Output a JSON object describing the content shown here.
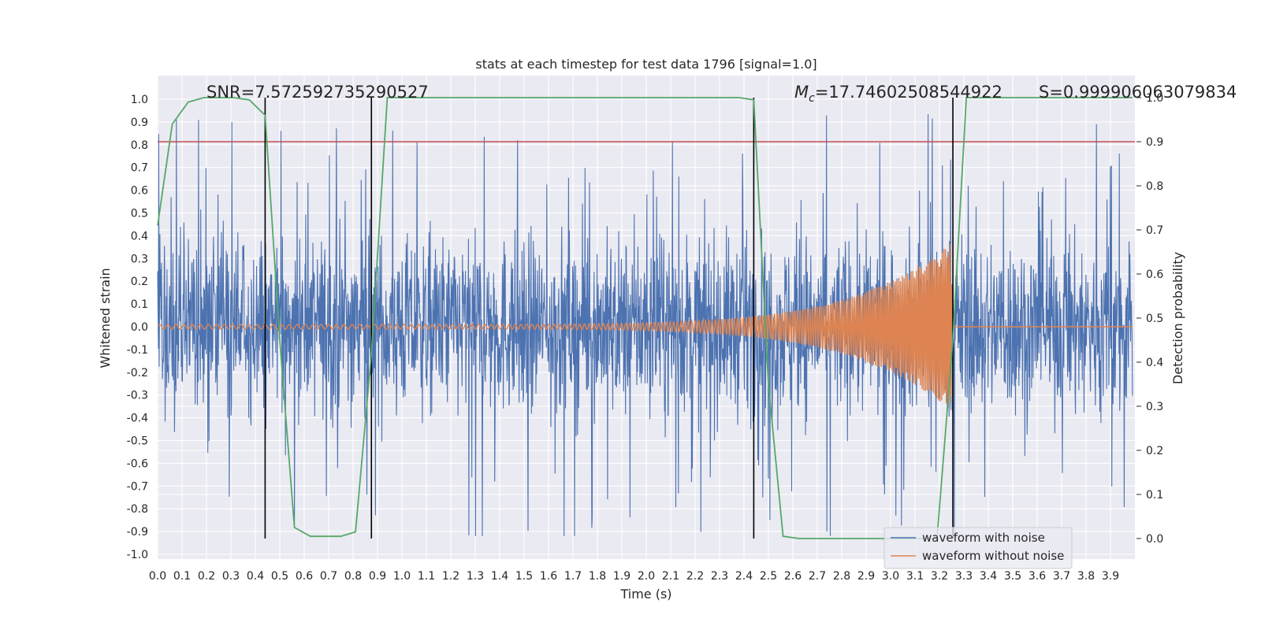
{
  "chart_data": {
    "type": "line",
    "title": "stats at each timestep for test data 1796 [signal=1.0]",
    "xlabel": "Time (s)",
    "ylabel": "Whitened strain",
    "y2label": "Detection probability",
    "xlim": [
      0.0,
      3.99
    ],
    "ylim": [
      -1.05,
      1.08
    ],
    "y2lim": [
      -0.05,
      1.0
    ],
    "xticks": [
      "0.0",
      "0.1",
      "0.2",
      "0.3",
      "0.4",
      "0.5",
      "0.6",
      "0.7",
      "0.8",
      "0.9",
      "1.0",
      "1.1",
      "1.2",
      "1.3",
      "1.4",
      "1.5",
      "1.6",
      "1.7",
      "1.8",
      "1.9",
      "2.0",
      "2.1",
      "2.2",
      "2.3",
      "2.4",
      "2.5",
      "2.6",
      "2.7",
      "2.8",
      "2.9",
      "3.0",
      "3.1",
      "3.2",
      "3.3",
      "3.4",
      "3.5",
      "3.6",
      "3.7",
      "3.8",
      "3.9"
    ],
    "yticks": [
      "-1.0",
      "-0.9",
      "-0.8",
      "-0.7",
      "-0.6",
      "-0.5",
      "-0.4",
      "-0.3",
      "-0.2",
      "-0.1",
      "0.0",
      "0.1",
      "0.2",
      "0.3",
      "0.4",
      "0.5",
      "0.6",
      "0.7",
      "0.8",
      "0.9",
      "1.0"
    ],
    "y2ticks": [
      "0.0",
      "0.1",
      "0.2",
      "0.3",
      "0.4",
      "0.5",
      "0.6",
      "0.7",
      "0.8",
      "0.9",
      "1.0"
    ],
    "grid": true,
    "legend_position": "lower-right",
    "legend": [
      {
        "label": "waveform with noise",
        "color": "#4c72b0"
      },
      {
        "label": "waveform without noise",
        "color": "#dd8452"
      }
    ],
    "annotations": {
      "snr": "SNR=7.572592735290527",
      "mc_symbol": "M",
      "mc_sub": "c",
      "mc_value": "=17.74602508544922",
      "s": "S=0.999906063079834"
    },
    "threshold": {
      "axis": "right",
      "value": 0.9,
      "color": "#c44e52"
    },
    "vertical_lines": [
      0.44,
      0.875,
      2.44,
      3.255
    ],
    "noise_envelope": {
      "typical_abs_max": 0.55,
      "peak_max": 1.0,
      "peak_min": -0.92
    },
    "clean_waveform": {
      "type": "chirp",
      "end_time": 3.25,
      "start_amplitude": 0.01,
      "peak_amplitude": 0.37,
      "start_freq_hz": 30,
      "end_freq_hz": 160
    },
    "series": [
      {
        "name": "Detection probability",
        "axis": "right",
        "color": "#55a868",
        "x": [
          0.0,
          0.06,
          0.125,
          0.19,
          0.25,
          0.31,
          0.375,
          0.44,
          0.5,
          0.56,
          0.625,
          0.69,
          0.75,
          0.81,
          0.875,
          0.94,
          1.0,
          2.38,
          2.44,
          2.5,
          2.56,
          2.625,
          2.69,
          2.75,
          2.81,
          2.875,
          2.94,
          3.0,
          3.06,
          3.125,
          3.19,
          3.255,
          3.31,
          3.375,
          3.99
        ],
        "y": [
          0.71,
          0.94,
          0.99,
          1.0,
          1.0,
          1.0,
          0.995,
          0.96,
          0.45,
          0.025,
          0.005,
          0.005,
          0.005,
          0.015,
          0.42,
          1.0,
          1.0,
          1.0,
          0.995,
          0.35,
          0.005,
          0.0,
          0.0,
          0.0,
          0.0,
          0.0,
          0.0,
          0.0,
          0.0,
          0.0,
          0.0,
          0.45,
          1.0,
          1.0,
          1.0
        ]
      }
    ]
  }
}
